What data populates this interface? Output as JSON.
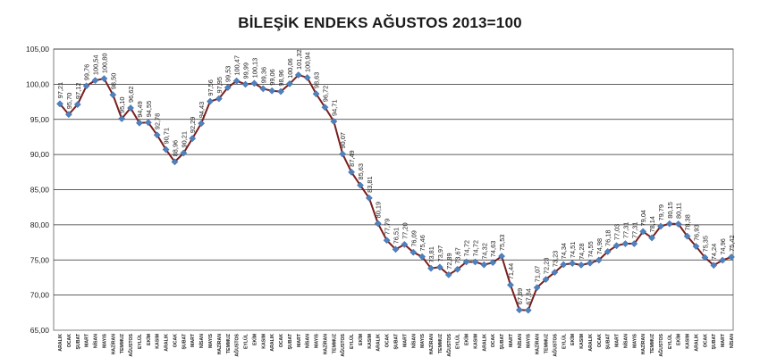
{
  "chart_data": {
    "type": "line",
    "title": "BİLEŞİK ENDEKS AĞUSTOS 2013=100",
    "xlabel": "",
    "ylabel": "",
    "ylim": [
      65,
      105
    ],
    "y_ticks": [
      "65,00",
      "70,00",
      "75,00",
      "80,00",
      "85,00",
      "90,00",
      "95,00",
      "100,00",
      "105,00"
    ],
    "grid": true,
    "legend": "none",
    "line_color": "#7a1f1f",
    "marker_color": "#4f81bd",
    "categories": [
      "ARALIK",
      "OCAK",
      "ŞUBAT",
      "MART",
      "NİSAN",
      "MAYIS",
      "HAZİRAN",
      "TEMMUZ",
      "AĞUSTOS",
      "EYLÜL",
      "EKİM",
      "KASIM",
      "ARALIK",
      "OCAK",
      "ŞUBAT",
      "MART",
      "NİSAN",
      "MAYIS",
      "HAZİRAN",
      "TEMMUZ",
      "AĞUSTOS",
      "EYLÜL",
      "EKİM",
      "KASIM",
      "ARALIK",
      "OCAK",
      "ŞUBAT",
      "MART",
      "NİSAN",
      "MAYIS",
      "HAZİRAN",
      "TEMMUZ",
      "AĞUSTOS",
      "EYLÜL",
      "EKİM",
      "KASIM",
      "ARALIK",
      "OCAK",
      "ŞUBAT",
      "MART",
      "NİSAN",
      "MAYIS",
      "HAZİRAN",
      "TEMMUZ",
      "AĞUSTOS",
      "EYLÜL",
      "EKİM",
      "KASIM",
      "ARALIK",
      "OCAK",
      "ŞUBAT",
      "MART",
      "NİSAN",
      "MAYIS",
      "HAZİRAN",
      "TEMMUZ",
      "AĞUSTOS",
      "EYLÜL",
      "EKİM",
      "KASIM",
      "ARALIK",
      "OCAK",
      "ŞUBAT",
      "MART",
      "NİSAN",
      "MAYIS",
      "HAZİRAN",
      "TEMMUZ",
      "AĞUSTOS",
      "EYLÜL",
      "EKİM",
      "KASIM",
      "ARALIK",
      "OCAK",
      "ŞUBAT",
      "MART",
      "NİSAN"
    ],
    "values": [
      97.21,
      95.7,
      97.12,
      99.76,
      100.54,
      100.8,
      98.5,
      95.1,
      96.62,
      94.49,
      94.55,
      92.78,
      90.71,
      88.96,
      90.21,
      92.29,
      94.43,
      97.56,
      97.95,
      99.53,
      100.47,
      99.99,
      100.13,
      99.36,
      99.06,
      98.96,
      100.06,
      101.32,
      100.94,
      98.63,
      96.72,
      94.71,
      90.07,
      87.49,
      85.63,
      83.81,
      80.19,
      77.79,
      76.51,
      77.2,
      76.09,
      75.46,
      73.81,
      73.97,
      72.89,
      73.67,
      74.72,
      74.72,
      74.32,
      74.63,
      75.53,
      71.44,
      67.89,
      67.84,
      71.07,
      72.23,
      73.23,
      74.34,
      74.51,
      74.28,
      74.55,
      74.98,
      76.18,
      77.03,
      77.31,
      77.31,
      79.04,
      78.14,
      79.79,
      80.15,
      80.11,
      78.38,
      76.93,
      75.35,
      74.24,
      74.96,
      75.42
    ],
    "data_labels": [
      "97,21",
      "95,70",
      "97,12",
      "99,76",
      "100,54",
      "100,80",
      "98,50",
      "95,10",
      "96,62",
      "94,49",
      "94,55",
      "92,78",
      "90,71",
      "88,96",
      "90,21",
      "92,29",
      "94,43",
      "97,56",
      "97,95",
      "99,53",
      "100,47",
      "99,99",
      "100,13",
      "99,36",
      "99,06",
      "98,96",
      "100,06",
      "101,32",
      "100,94",
      "98,63",
      "96,72",
      "94,71",
      "90,07",
      "87,49",
      "85,63",
      "83,81",
      "80,19",
      "77,79",
      "76,51",
      "77,20",
      "76,09",
      "75,46",
      "73,81",
      "73,97",
      "72,89",
      "73,67",
      "74,72",
      "74,72",
      "74,32",
      "74,63",
      "75,53",
      "71,44",
      "67,89",
      "67,84",
      "71,07",
      "72,23",
      "73,23",
      "74,34",
      "74,51",
      "74,28",
      "74,55",
      "74,98",
      "76,18",
      "77,03",
      "77,31",
      "77,31",
      "79,04",
      "78,14",
      "79,79",
      "80,15",
      "80,11",
      "78,38",
      "76,93",
      "75,35",
      "74,24",
      "74,96",
      "75,42"
    ]
  }
}
